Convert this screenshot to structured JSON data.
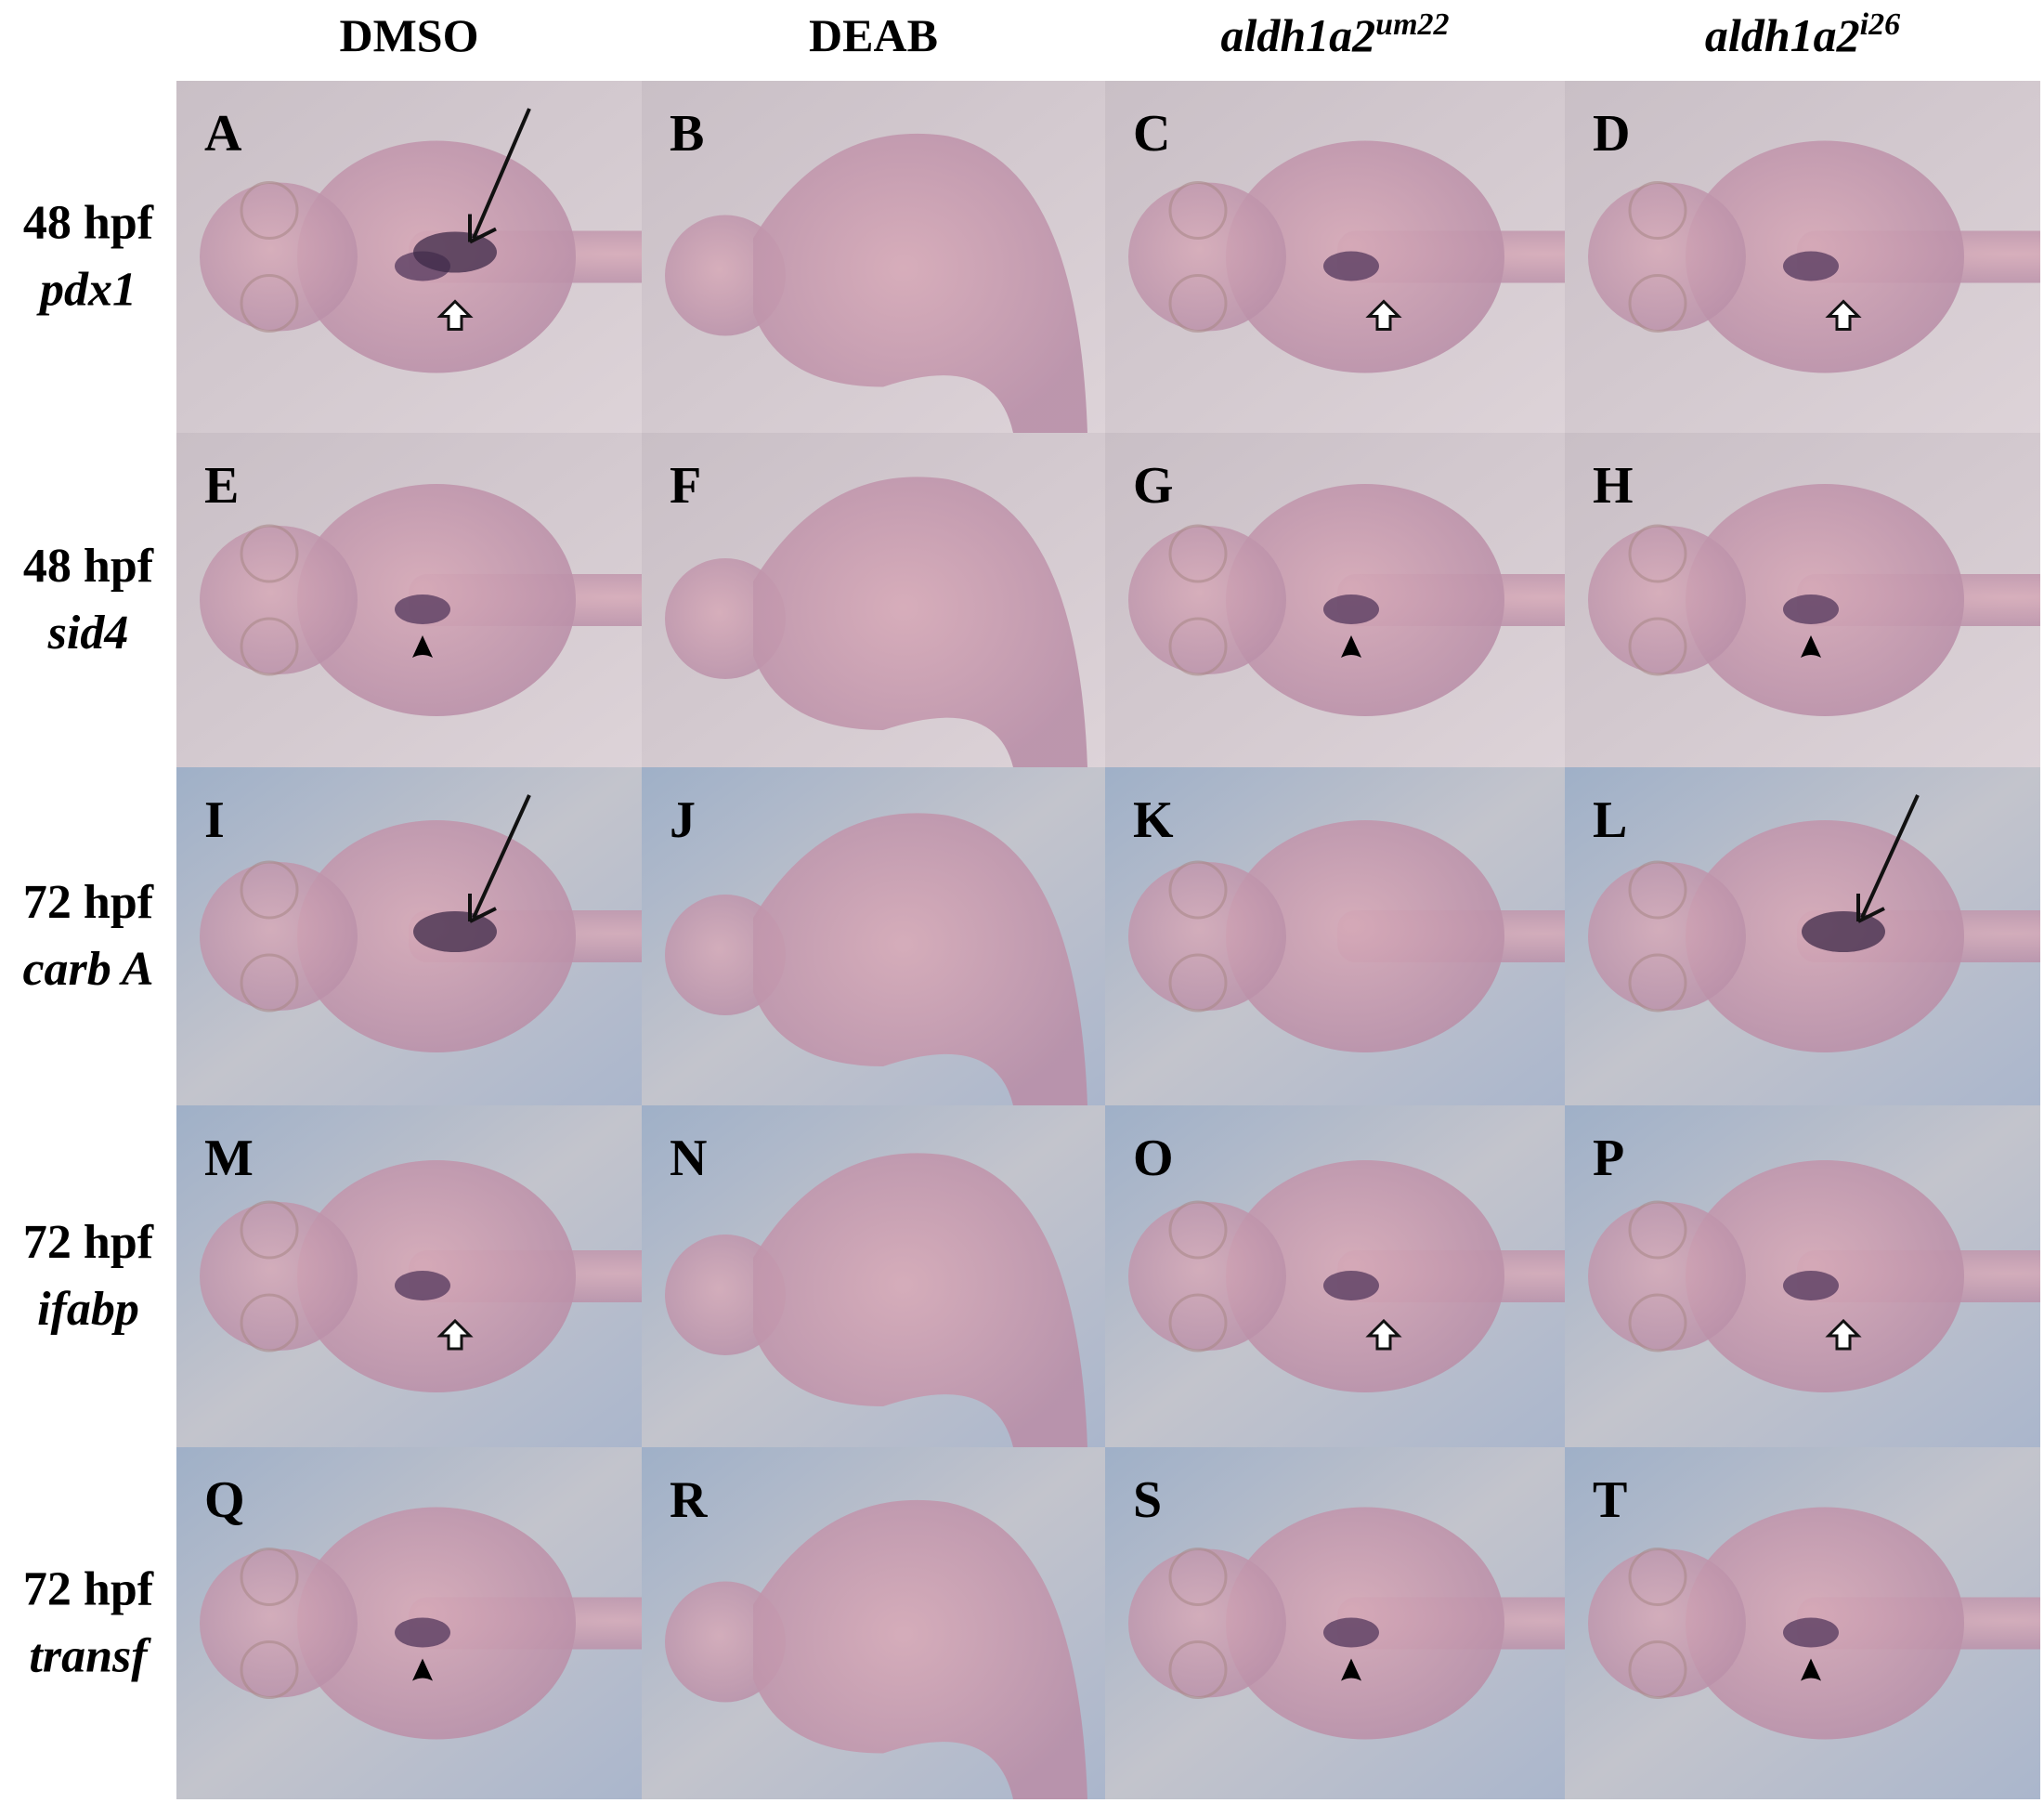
{
  "columns": [
    {
      "base": "DMSO"
    },
    {
      "base": "DEAB"
    },
    {
      "base": "aldh1a2",
      "sup": "um22"
    },
    {
      "base": "aldh1a2",
      "sup": "i26"
    }
  ],
  "rows": [
    {
      "time": "48 hpf",
      "gene": "pdx1"
    },
    {
      "time": "48 hpf",
      "gene": "sid4"
    },
    {
      "time": "72 hpf",
      "gene": "carb A"
    },
    {
      "time": "72 hpf",
      "gene": "ifabp"
    },
    {
      "time": "72 hpf",
      "gene": "transf"
    }
  ],
  "panels": [
    [
      "A",
      "B",
      "C",
      "D"
    ],
    [
      "E",
      "F",
      "G",
      "H"
    ],
    [
      "I",
      "J",
      "K",
      "L"
    ],
    [
      "M",
      "N",
      "O",
      "P"
    ],
    [
      "Q",
      "R",
      "S",
      "T"
    ]
  ]
}
